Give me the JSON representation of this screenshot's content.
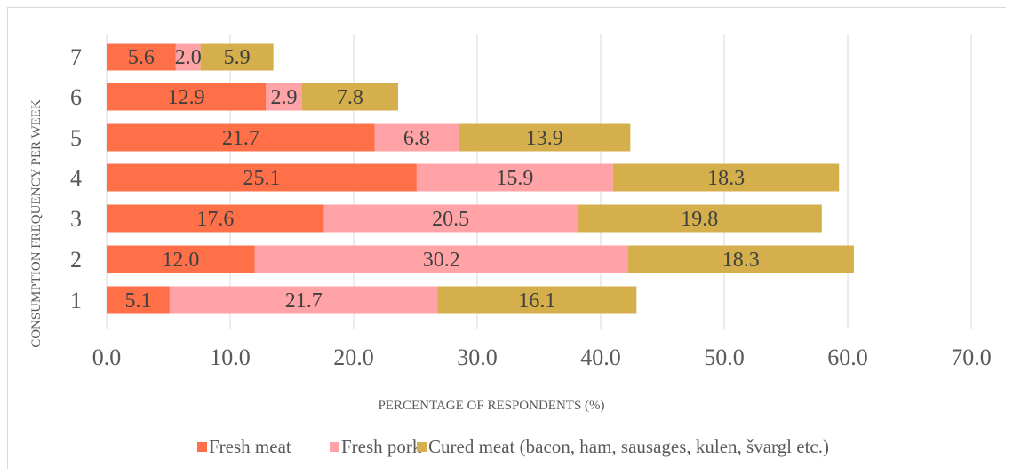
{
  "chart_data": {
    "type": "bar",
    "orientation": "horizontal",
    "stacked": true,
    "categories": [
      "1",
      "2",
      "3",
      "4",
      "5",
      "6",
      "7"
    ],
    "series": [
      {
        "name": "Fresh meat",
        "color": "#FF7048",
        "values": [
          5.1,
          12.0,
          17.6,
          25.1,
          21.7,
          12.9,
          5.6
        ],
        "labels": [
          "5.1",
          "12.0",
          "17.6",
          "25.1",
          "21.7",
          "12.9",
          "5.6"
        ]
      },
      {
        "name": "Fresh pork",
        "color": "#FFA3A6",
        "values": [
          21.7,
          30.2,
          20.5,
          15.9,
          6.8,
          2.9,
          2.0
        ],
        "labels": [
          "21.7",
          "30.2",
          "20.5",
          "15.9",
          "6.8",
          "2.9",
          "2.0"
        ]
      },
      {
        "name": "Cured meat (bacon, ham, sausages, kulen, švargl etc.)",
        "color": "#D4AF4B",
        "values": [
          16.1,
          18.3,
          19.8,
          18.3,
          13.9,
          7.8,
          5.9
        ],
        "labels": [
          "16.1",
          "18.3",
          "19.8",
          "18.3",
          "13.9",
          "7.8",
          "5.9"
        ]
      }
    ],
    "xlabel": "PERCENTAGE OF RESPONDENTS (%)",
    "ylabel": "CONSUMPTION FREQUENCY PER WEEK",
    "xlim": [
      0,
      70
    ],
    "xticks": [
      "0.0",
      "10.0",
      "20.0",
      "30.0",
      "40.0",
      "50.0",
      "60.0",
      "70.0"
    ],
    "xtick_values": [
      0,
      10,
      20,
      30,
      40,
      50,
      60,
      70
    ],
    "grid": "vertical",
    "legend_position": "bottom",
    "gridline_color": "#d9d9d9"
  }
}
